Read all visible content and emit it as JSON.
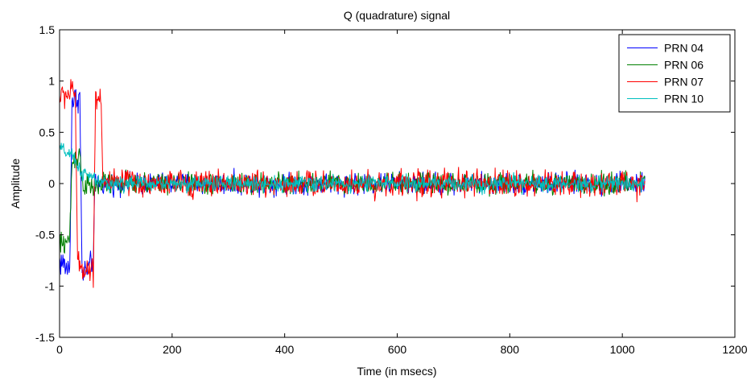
{
  "chart_data": {
    "type": "line",
    "title": "Q (quadrature) signal",
    "xlabel": "Time (in msecs)",
    "ylabel": "Amplitude",
    "xlim": [
      0,
      1200
    ],
    "ylim": [
      -1.5,
      1.5
    ],
    "xticks": [
      0,
      200,
      400,
      600,
      800,
      1000,
      1200
    ],
    "yticks": [
      -1.5,
      -1,
      -0.5,
      0,
      0.5,
      1,
      1.5
    ],
    "xtick_labels": [
      "0",
      "200",
      "400",
      "600",
      "800",
      "1000",
      "1200"
    ],
    "ytick_labels": [
      "-1.5",
      "-1",
      "-0.5",
      "0",
      "0.5",
      "1",
      "1.5"
    ],
    "grid": false,
    "legend_position": "top-right",
    "x_end": 1040,
    "series": [
      {
        "name": "PRN 04",
        "color": "#0000ff",
        "keypoints": [
          [
            0,
            -0.75
          ],
          [
            18,
            -0.85
          ],
          [
            22,
            0.8
          ],
          [
            36,
            0.85
          ],
          [
            40,
            -0.9
          ],
          [
            60,
            -0.75
          ],
          [
            63,
            0.0
          ],
          [
            75,
            0.0
          ],
          [
            600,
            0.0
          ],
          [
            1040,
            0.0
          ]
        ],
        "noise": [
          [
            0,
            0.12
          ],
          [
            75,
            0.08
          ],
          [
            1040,
            0.08
          ]
        ]
      },
      {
        "name": "PRN 06",
        "color": "#008000",
        "keypoints": [
          [
            0,
            -0.6
          ],
          [
            18,
            -0.55
          ],
          [
            22,
            0.2
          ],
          [
            36,
            0.3
          ],
          [
            40,
            0.0
          ],
          [
            60,
            -0.05
          ],
          [
            75,
            0.0
          ],
          [
            1040,
            0.0
          ]
        ],
        "noise": [
          [
            0,
            0.1
          ],
          [
            75,
            0.08
          ],
          [
            1040,
            0.08
          ]
        ]
      },
      {
        "name": "PRN 07",
        "color": "#ff0000",
        "keypoints": [
          [
            0,
            0.85
          ],
          [
            28,
            0.9
          ],
          [
            32,
            -0.8
          ],
          [
            60,
            -0.85
          ],
          [
            64,
            0.85
          ],
          [
            74,
            0.85
          ],
          [
            77,
            0.0
          ],
          [
            1040,
            0.0
          ]
        ],
        "noise": [
          [
            0,
            0.1
          ],
          [
            75,
            0.1
          ],
          [
            1040,
            0.1
          ]
        ]
      },
      {
        "name": "PRN 10",
        "color": "#00bfbf",
        "keypoints": [
          [
            0,
            0.35
          ],
          [
            25,
            0.25
          ],
          [
            40,
            0.1
          ],
          [
            60,
            0.05
          ],
          [
            75,
            0.0
          ],
          [
            1040,
            0.0
          ]
        ],
        "noise": [
          [
            0,
            0.05
          ],
          [
            75,
            0.06
          ],
          [
            1040,
            0.06
          ]
        ]
      }
    ]
  }
}
